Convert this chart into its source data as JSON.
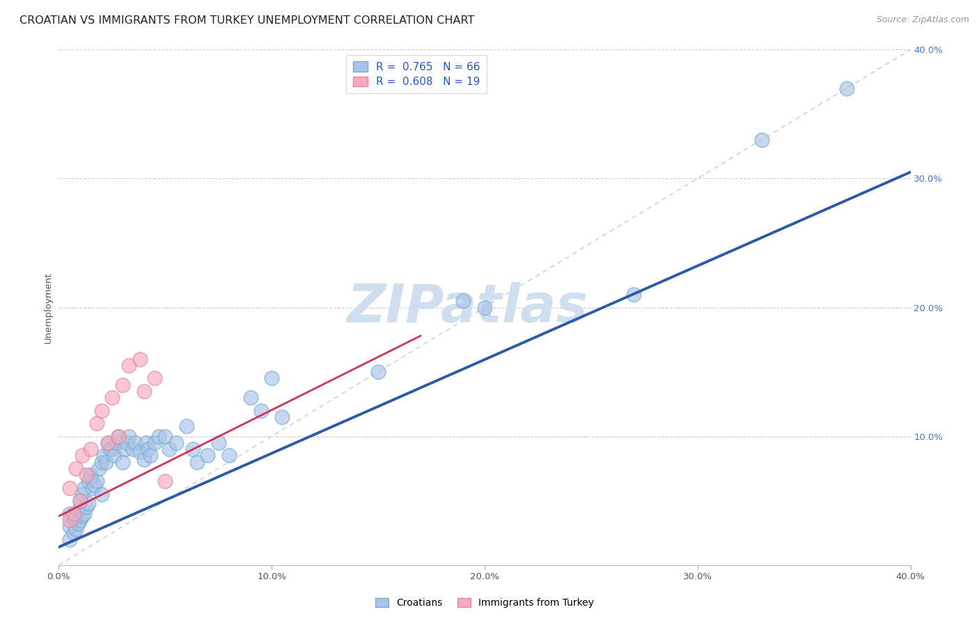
{
  "title": "CROATIAN VS IMMIGRANTS FROM TURKEY UNEMPLOYMENT CORRELATION CHART",
  "source": "Source: ZipAtlas.com",
  "ylabel": "Unemployment",
  "xlim": [
    0.0,
    0.4
  ],
  "ylim": [
    0.0,
    0.4
  ],
  "xtick_labels": [
    "0.0%",
    "10.0%",
    "20.0%",
    "30.0%",
    "40.0%"
  ],
  "xtick_vals": [
    0.0,
    0.1,
    0.2,
    0.3,
    0.4
  ],
  "ytick_labels_right": [
    "10.0%",
    "20.0%",
    "30.0%",
    "40.0%"
  ],
  "ytick_vals_right": [
    0.1,
    0.2,
    0.3,
    0.4
  ],
  "blue_R": 0.765,
  "blue_N": 66,
  "pink_R": 0.608,
  "pink_N": 19,
  "blue_color": "#A8C4E8",
  "blue_edge_color": "#7AAAD0",
  "pink_color": "#F5AABC",
  "pink_edge_color": "#E088A0",
  "blue_line_color": "#2B5BA8",
  "pink_line_color": "#CC3355",
  "diagonal_color": "#C8C8C8",
  "watermark_color": "#D0DFF0",
  "legend_labels": [
    "Croatians",
    "Immigrants from Turkey"
  ],
  "blue_scatter_x": [
    0.005,
    0.005,
    0.005,
    0.007,
    0.007,
    0.008,
    0.008,
    0.009,
    0.009,
    0.01,
    0.01,
    0.011,
    0.011,
    0.012,
    0.012,
    0.013,
    0.014,
    0.014,
    0.015,
    0.015,
    0.016,
    0.017,
    0.018,
    0.019,
    0.02,
    0.02,
    0.021,
    0.022,
    0.023,
    0.024,
    0.025,
    0.026,
    0.027,
    0.028,
    0.03,
    0.031,
    0.032,
    0.033,
    0.035,
    0.036,
    0.038,
    0.04,
    0.041,
    0.042,
    0.043,
    0.045,
    0.047,
    0.05,
    0.052,
    0.055,
    0.06,
    0.063,
    0.065,
    0.07,
    0.075,
    0.08,
    0.09,
    0.095,
    0.1,
    0.105,
    0.15,
    0.19,
    0.2,
    0.27,
    0.33,
    0.37
  ],
  "blue_scatter_y": [
    0.02,
    0.03,
    0.04,
    0.025,
    0.035,
    0.028,
    0.038,
    0.032,
    0.042,
    0.035,
    0.05,
    0.038,
    0.055,
    0.04,
    0.06,
    0.045,
    0.065,
    0.048,
    0.068,
    0.07,
    0.06,
    0.062,
    0.065,
    0.075,
    0.055,
    0.08,
    0.085,
    0.08,
    0.095,
    0.09,
    0.09,
    0.085,
    0.095,
    0.1,
    0.08,
    0.09,
    0.095,
    0.1,
    0.09,
    0.095,
    0.088,
    0.082,
    0.095,
    0.09,
    0.085,
    0.095,
    0.1,
    0.1,
    0.09,
    0.095,
    0.108,
    0.09,
    0.08,
    0.085,
    0.095,
    0.085,
    0.13,
    0.12,
    0.145,
    0.115,
    0.15,
    0.205,
    0.2,
    0.21,
    0.33,
    0.37
  ],
  "pink_scatter_x": [
    0.005,
    0.005,
    0.007,
    0.008,
    0.01,
    0.011,
    0.013,
    0.015,
    0.018,
    0.02,
    0.023,
    0.025,
    0.028,
    0.03,
    0.033,
    0.038,
    0.04,
    0.045,
    0.05
  ],
  "pink_scatter_y": [
    0.035,
    0.06,
    0.04,
    0.075,
    0.05,
    0.085,
    0.07,
    0.09,
    0.11,
    0.12,
    0.095,
    0.13,
    0.1,
    0.14,
    0.155,
    0.16,
    0.135,
    0.145,
    0.065
  ],
  "blue_line_x0": 0.0,
  "blue_line_x1": 0.4,
  "blue_line_y0": 0.014,
  "blue_line_y1": 0.305,
  "pink_line_x0": 0.0,
  "pink_line_x1": 0.17,
  "pink_line_y0": 0.038,
  "pink_line_y1": 0.178,
  "title_fontsize": 11.5,
  "axis_fontsize": 9.5,
  "legend_fontsize": 11,
  "source_fontsize": 9
}
